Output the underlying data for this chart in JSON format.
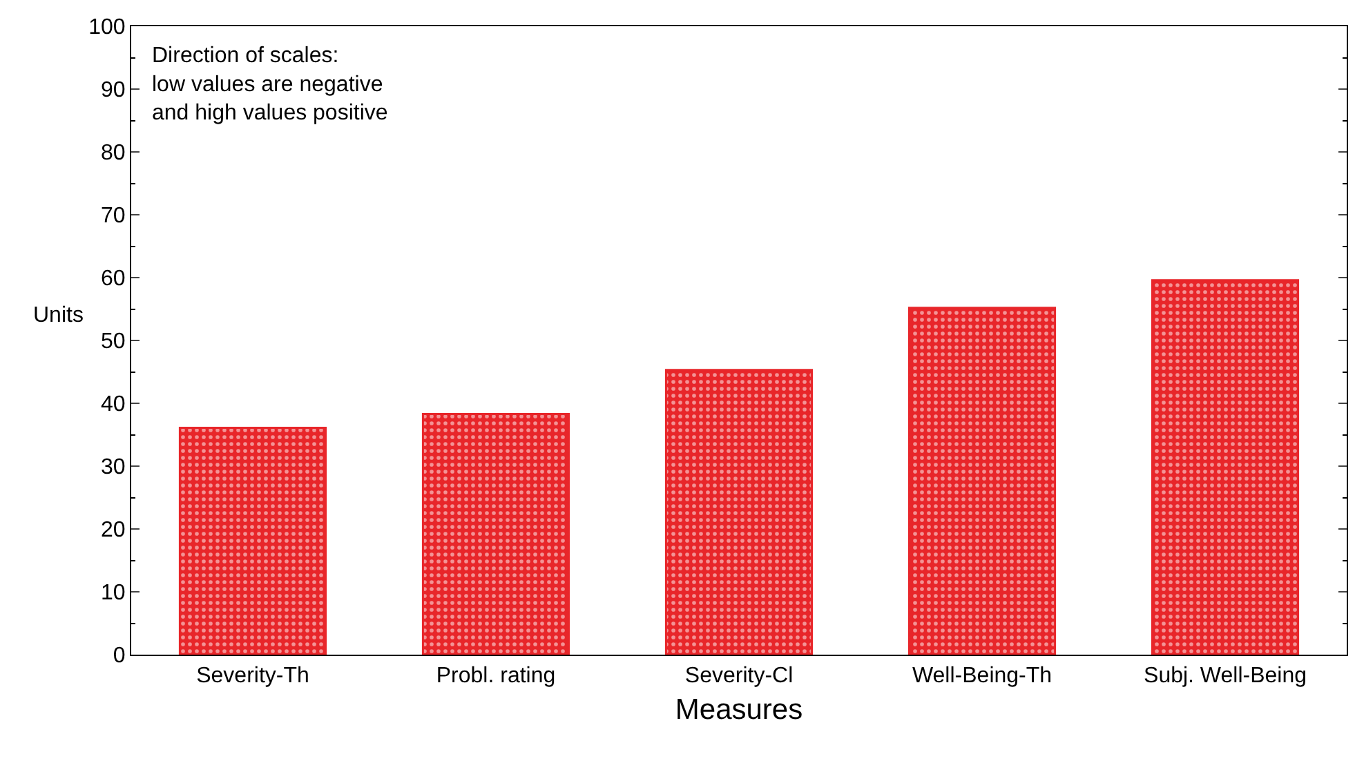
{
  "chart_data": {
    "type": "bar",
    "xlabel": "Measures",
    "ylabel": "Units",
    "categories": [
      "Severity-Th",
      "Probl. rating",
      "Severity-Cl",
      "Well-Being-Th",
      "Subj. Well-Being"
    ],
    "values": [
      36.1,
      38.3,
      45.3,
      55.2,
      59.6
    ],
    "color": "#e8262a",
    "ylim": [
      0,
      100
    ],
    "yticks": [
      0,
      10,
      20,
      30,
      40,
      50,
      60,
      70,
      80,
      90,
      100
    ],
    "annotations": [
      "Direction of scales:\nlow values are negative\nand high values positive"
    ]
  }
}
